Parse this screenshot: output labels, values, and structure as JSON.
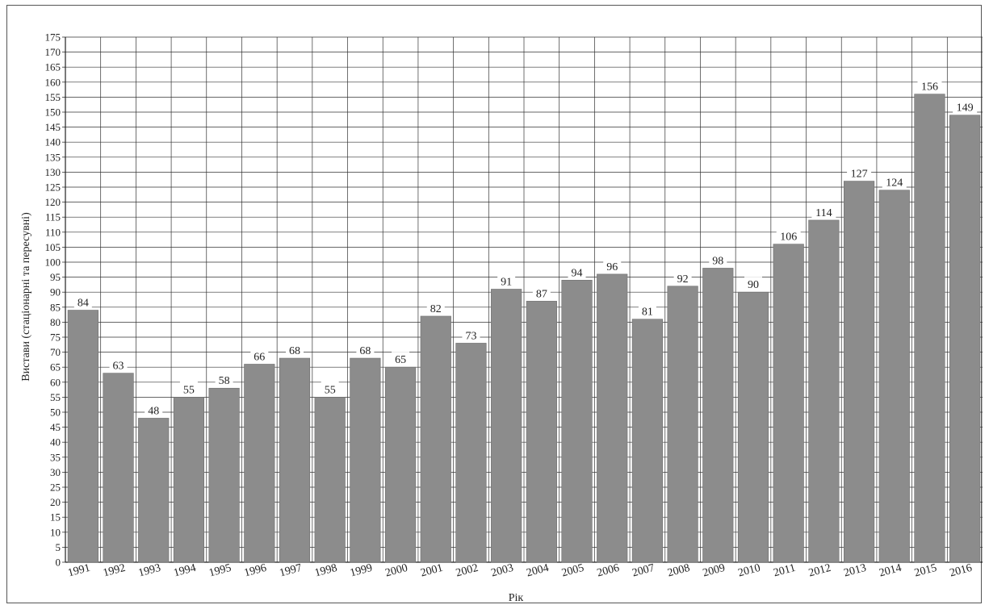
{
  "chart_data": {
    "type": "bar",
    "title": "",
    "xlabel": "Рік",
    "ylabel": "Вистави (стаціонарні та пересувні)",
    "ylim": [
      0,
      175
    ],
    "ytick_step": 5,
    "grid": true,
    "categories": [
      "1991",
      "1992",
      "1993",
      "1994",
      "1995",
      "1996",
      "1997",
      "1998",
      "1999",
      "2000",
      "2001",
      "2002",
      "2003",
      "2004",
      "2005",
      "2006",
      "2007",
      "2008",
      "2009",
      "2010",
      "2011",
      "2012",
      "2013",
      "2014",
      "2015",
      "2016"
    ],
    "values": [
      84,
      63,
      48,
      55,
      58,
      66,
      68,
      55,
      68,
      65,
      82,
      73,
      91,
      87,
      94,
      96,
      81,
      92,
      98,
      90,
      106,
      114,
      127,
      124,
      156,
      149
    ],
    "bar_color": "#8c8c8c"
  }
}
